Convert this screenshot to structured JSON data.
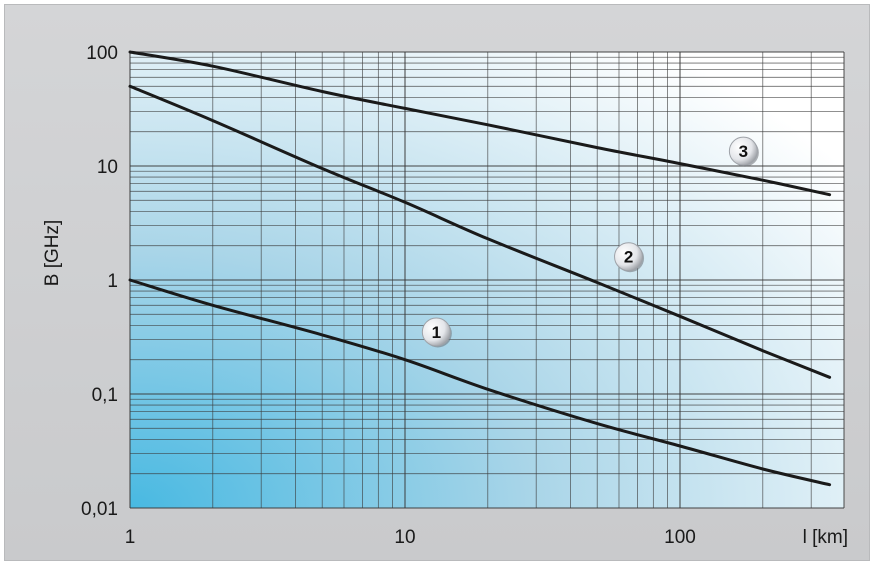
{
  "chart_data": {
    "type": "line",
    "title": "",
    "xlabel": "l [km]",
    "ylabel": "B [GHz]",
    "x_scale": "log",
    "y_scale": "log",
    "xlim": [
      1,
      400
    ],
    "ylim": [
      0.01,
      100
    ],
    "grid": true,
    "x_ticks": [
      "1",
      "10",
      "100"
    ],
    "y_ticks": [
      "0,01",
      "0,1",
      "1",
      "10",
      "100"
    ],
    "series": [
      {
        "name": "1",
        "x": [
          1,
          2,
          5,
          10,
          20,
          50,
          100,
          200,
          350
        ],
        "y": [
          1.0,
          0.6,
          0.33,
          0.2,
          0.11,
          0.055,
          0.035,
          0.022,
          0.016
        ]
      },
      {
        "name": "2",
        "x": [
          1,
          2,
          5,
          10,
          20,
          50,
          100,
          200,
          350
        ],
        "y": [
          50,
          25,
          9.5,
          4.8,
          2.3,
          0.95,
          0.48,
          0.24,
          0.14
        ]
      },
      {
        "name": "3",
        "x": [
          1,
          2,
          5,
          10,
          20,
          50,
          100,
          200,
          350
        ],
        "y": [
          100,
          75,
          45,
          32,
          23,
          14.5,
          10.5,
          7.5,
          5.6
        ]
      }
    ],
    "annotations": [
      {
        "text": "1",
        "x": 13,
        "y": 0.35
      },
      {
        "text": "2",
        "x": 65,
        "y": 1.6
      },
      {
        "text": "3",
        "x": 170,
        "y": 13.5
      }
    ],
    "colors": {
      "line": "#1a1a1a",
      "grid": "#3a3a3a",
      "plot_bg_left": "#5cc3e6",
      "plot_bg_right": "#ffffff"
    }
  }
}
